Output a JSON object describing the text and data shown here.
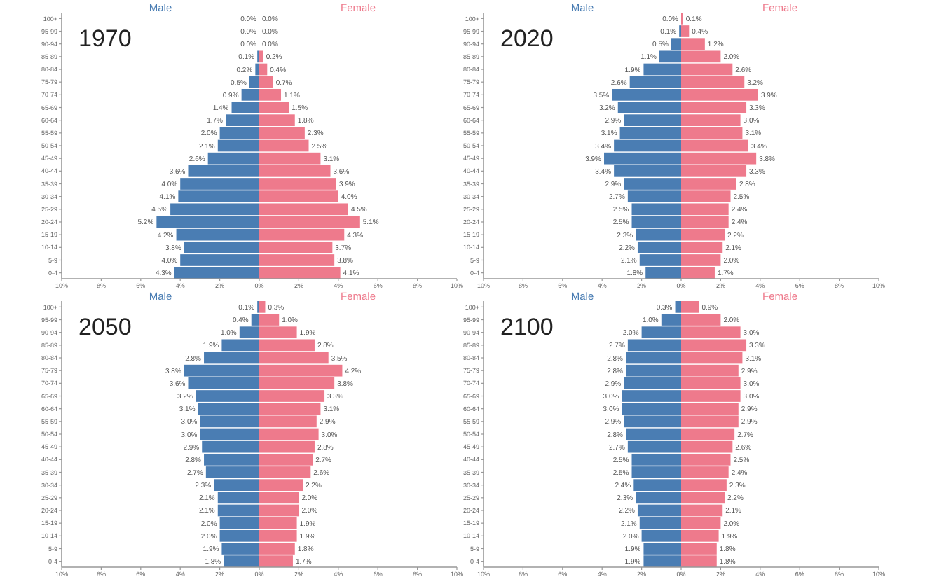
{
  "chart_data": [
    {
      "type": "bar",
      "orientation": "horizontal",
      "stacked": true,
      "title": "1970",
      "categories": [
        "100+",
        "95-99",
        "90-94",
        "85-89",
        "80-84",
        "75-79",
        "70-74",
        "65-69",
        "60-64",
        "55-59",
        "50-54",
        "45-49",
        "40-44",
        "35-39",
        "30-34",
        "25-29",
        "20-24",
        "15-19",
        "10-14",
        "5-9",
        "0-4"
      ],
      "xlim": [
        -10,
        10
      ],
      "xticks": [
        {
          "value": -10,
          "label": "10%"
        },
        {
          "value": -8,
          "label": "8%"
        },
        {
          "value": -6,
          "label": "6%"
        },
        {
          "value": -4,
          "label": "4%"
        },
        {
          "value": -2,
          "label": "2%"
        },
        {
          "value": 0,
          "label": "0%"
        },
        {
          "value": 2,
          "label": "2%"
        },
        {
          "value": 4,
          "label": "4%"
        },
        {
          "value": 6,
          "label": "6%"
        },
        {
          "value": 8,
          "label": "8%"
        },
        {
          "value": 10,
          "label": "10%"
        }
      ],
      "series": [
        {
          "name": "Male",
          "color": "#4a7db3",
          "values": [
            0.0,
            0.0,
            0.0,
            -0.1,
            -0.2,
            -0.5,
            -0.9,
            -1.4,
            -1.7,
            -2.0,
            -2.1,
            -2.6,
            -3.6,
            -4.0,
            -4.1,
            -4.5,
            -5.2,
            -4.2,
            -3.8,
            -4.0,
            -4.3
          ]
        },
        {
          "name": "Female",
          "color": "#ee7a8c",
          "values": [
            0.0,
            0.0,
            0.0,
            0.2,
            0.4,
            0.7,
            1.1,
            1.5,
            1.8,
            2.3,
            2.5,
            3.1,
            3.6,
            3.9,
            4.0,
            4.5,
            5.1,
            4.3,
            3.7,
            3.8,
            4.1
          ],
          "value_labels": [
            "0.0%",
            "0.0%",
            "0.0%",
            "0.2%",
            "0.4%",
            "0.7%",
            "1.1%",
            "1.5%",
            "1.8%",
            "2.3%",
            "2.5%",
            "3.1%",
            "3.6%",
            "3.9%",
            "4.0%",
            "4.5%",
            "5.1%",
            "4.3%",
            "3.7%",
            "3.8%",
            "4.1%"
          ]
        }
      ],
      "annotations": [
        {
          "text": "0.0%",
          "x": 0.0,
          "y": "100+"
        },
        {
          "text": "0.0%",
          "x": 0.0,
          "y": "95-99"
        },
        {
          "text": "0.0%",
          "x": 0.0,
          "y": "90-94"
        },
        {
          "text": "0.1%",
          "x": -0.1,
          "y": "85-89"
        },
        {
          "text": "0.2%",
          "x": -0.2,
          "y": "80-84"
        },
        {
          "text": "0.5%",
          "x": -0.5,
          "y": "75-79"
        },
        {
          "text": "0.9%",
          "x": -0.9,
          "y": "70-74"
        },
        {
          "text": "1.4%",
          "x": -1.4,
          "y": "65-69"
        },
        {
          "text": "1.7%",
          "x": -1.7,
          "y": "60-64"
        },
        {
          "text": "2.0%",
          "x": -2.0,
          "y": "55-59"
        },
        {
          "text": "2.1%",
          "x": -2.1,
          "y": "50-54"
        },
        {
          "text": "2.6%",
          "x": -2.6,
          "y": "45-49"
        },
        {
          "text": "3.6%",
          "x": -3.6,
          "y": "40-44"
        },
        {
          "text": "4.0%",
          "x": -4.0,
          "y": "35-39"
        },
        {
          "text": "4.1%",
          "x": -4.1,
          "y": "30-34"
        },
        {
          "text": "4.5%",
          "x": -4.5,
          "y": "25-29"
        },
        {
          "text": "5.2%",
          "x": -5.2,
          "y": "20-24"
        },
        {
          "text": "4.2%",
          "x": -4.2,
          "y": "15-19"
        },
        {
          "text": "3.8%",
          "x": -3.8,
          "y": "10-14"
        },
        {
          "text": "4.0%",
          "x": -4.0,
          "y": "5-9"
        },
        {
          "text": "4.3%",
          "x": -4.3,
          "y": "0-4"
        }
      ]
    },
    {
      "type": "bar",
      "orientation": "horizontal",
      "stacked": true,
      "title": "2020",
      "categories": [
        "100+",
        "95-99",
        "90-94",
        "85-89",
        "80-84",
        "75-79",
        "70-74",
        "65-69",
        "60-64",
        "55-59",
        "50-54",
        "45-49",
        "40-44",
        "35-39",
        "30-34",
        "25-29",
        "20-24",
        "15-19",
        "10-14",
        "5-9",
        "0-4"
      ],
      "xlim": [
        -10,
        10
      ],
      "xticks": [
        {
          "value": -10,
          "label": "10%"
        },
        {
          "value": -8,
          "label": "8%"
        },
        {
          "value": -6,
          "label": "6%"
        },
        {
          "value": -4,
          "label": "4%"
        },
        {
          "value": -2,
          "label": "2%"
        },
        {
          "value": 0,
          "label": "0%"
        },
        {
          "value": 2,
          "label": "2%"
        },
        {
          "value": 4,
          "label": "4%"
        },
        {
          "value": 6,
          "label": "6%"
        },
        {
          "value": 8,
          "label": "8%"
        },
        {
          "value": 10,
          "label": "10%"
        }
      ],
      "series": [
        {
          "name": "Male",
          "color": "#4a7db3",
          "values": [
            0.0,
            -0.1,
            -0.5,
            -1.1,
            -1.9,
            -2.6,
            -3.5,
            -3.2,
            -2.9,
            -3.1,
            -3.4,
            -3.9,
            -3.4,
            -2.9,
            -2.7,
            -2.5,
            -2.5,
            -2.3,
            -2.2,
            -2.1,
            -1.8
          ]
        },
        {
          "name": "Female",
          "color": "#ee7a8c",
          "values": [
            0.1,
            0.4,
            1.2,
            2.0,
            2.6,
            3.2,
            3.9,
            3.3,
            3.0,
            3.1,
            3.4,
            3.8,
            3.3,
            2.8,
            2.5,
            2.4,
            2.4,
            2.2,
            2.1,
            2.0,
            1.7
          ],
          "value_labels": [
            "0.1%",
            "0.4%",
            "1.2%",
            "2.0%",
            "2.6%",
            "3.2%",
            "3.9%",
            "3.3%",
            "3.0%",
            "3.1%",
            "3.4%",
            "3.8%",
            "3.3%",
            "2.8%",
            "2.5%",
            "2.4%",
            "2.4%",
            "2.2%",
            "2.1%",
            "2.0%",
            "1.7%"
          ]
        }
      ],
      "annotations": [
        {
          "text": "0.0%",
          "x": 0.0,
          "y": "100+"
        },
        {
          "text": "0.1%",
          "x": -0.1,
          "y": "95-99"
        },
        {
          "text": "0.5%",
          "x": -0.5,
          "y": "90-94"
        },
        {
          "text": "1.1%",
          "x": -1.1,
          "y": "85-89"
        },
        {
          "text": "1.9%",
          "x": -1.9,
          "y": "80-84"
        },
        {
          "text": "2.6%",
          "x": -2.6,
          "y": "75-79"
        },
        {
          "text": "3.5%",
          "x": -3.5,
          "y": "70-74"
        },
        {
          "text": "3.2%",
          "x": -3.2,
          "y": "65-69"
        },
        {
          "text": "2.9%",
          "x": -2.9,
          "y": "60-64"
        },
        {
          "text": "3.1%",
          "x": -3.1,
          "y": "55-59"
        },
        {
          "text": "3.4%",
          "x": -3.4,
          "y": "50-54"
        },
        {
          "text": "3.9%",
          "x": -3.9,
          "y": "45-49"
        },
        {
          "text": "3.4%",
          "x": -3.4,
          "y": "40-44"
        },
        {
          "text": "2.9%",
          "x": -2.9,
          "y": "35-39"
        },
        {
          "text": "2.7%",
          "x": -2.7,
          "y": "30-34"
        },
        {
          "text": "2.5%",
          "x": -2.5,
          "y": "25-29"
        },
        {
          "text": "2.5%",
          "x": -2.5,
          "y": "20-24"
        },
        {
          "text": "2.3%",
          "x": -2.3,
          "y": "15-19"
        },
        {
          "text": "2.2%",
          "x": -2.2,
          "y": "10-14"
        },
        {
          "text": "2.1%",
          "x": -2.1,
          "y": "5-9"
        },
        {
          "text": "1.8%",
          "x": -1.8,
          "y": "0-4"
        }
      ]
    },
    {
      "type": "bar",
      "orientation": "horizontal",
      "stacked": true,
      "title": "2050",
      "categories": [
        "100+",
        "95-99",
        "90-94",
        "85-89",
        "80-84",
        "75-79",
        "70-74",
        "65-69",
        "60-64",
        "55-59",
        "50-54",
        "45-49",
        "40-44",
        "35-39",
        "30-34",
        "25-29",
        "20-24",
        "15-19",
        "10-14",
        "5-9",
        "0-4"
      ],
      "xlim": [
        -10,
        10
      ],
      "xticks": [
        {
          "value": -10,
          "label": "10%"
        },
        {
          "value": -8,
          "label": "8%"
        },
        {
          "value": -6,
          "label": "6%"
        },
        {
          "value": -4,
          "label": "4%"
        },
        {
          "value": -2,
          "label": "2%"
        },
        {
          "value": 0,
          "label": "0%"
        },
        {
          "value": 2,
          "label": "2%"
        },
        {
          "value": 4,
          "label": "4%"
        },
        {
          "value": 6,
          "label": "6%"
        },
        {
          "value": 8,
          "label": "8%"
        },
        {
          "value": 10,
          "label": "10%"
        }
      ],
      "series": [
        {
          "name": "Male",
          "color": "#4a7db3",
          "values": [
            -0.1,
            -0.4,
            -1.0,
            -1.9,
            -2.8,
            -3.8,
            -3.6,
            -3.2,
            -3.1,
            -3.0,
            -3.0,
            -2.9,
            -2.8,
            -2.7,
            -2.3,
            -2.1,
            -2.1,
            -2.0,
            -2.0,
            -1.9,
            -1.8
          ]
        },
        {
          "name": "Female",
          "color": "#ee7a8c",
          "values": [
            0.3,
            1.0,
            1.9,
            2.8,
            3.5,
            4.2,
            3.8,
            3.3,
            3.1,
            2.9,
            3.0,
            2.8,
            2.7,
            2.6,
            2.2,
            2.0,
            2.0,
            1.9,
            1.9,
            1.8,
            1.7
          ],
          "value_labels": [
            "0.3%",
            "1.0%",
            "1.9%",
            "2.8%",
            "3.5%",
            "4.2%",
            "3.8%",
            "3.3%",
            "3.1%",
            "2.9%",
            "3.0%",
            "2.8%",
            "2.7%",
            "2.6%",
            "2.2%",
            "2.0%",
            "2.0%",
            "1.9%",
            "1.9%",
            "1.8%",
            "1.7%"
          ]
        }
      ],
      "annotations": [
        {
          "text": "0.1%",
          "x": -0.1,
          "y": "100+"
        },
        {
          "text": "0.4%",
          "x": -0.4,
          "y": "95-99"
        },
        {
          "text": "1.0%",
          "x": -1.0,
          "y": "90-94"
        },
        {
          "text": "1.9%",
          "x": -1.9,
          "y": "85-89"
        },
        {
          "text": "2.8%",
          "x": -2.8,
          "y": "80-84"
        },
        {
          "text": "3.8%",
          "x": -3.8,
          "y": "75-79"
        },
        {
          "text": "3.6%",
          "x": -3.6,
          "y": "70-74"
        },
        {
          "text": "3.2%",
          "x": -3.2,
          "y": "65-69"
        },
        {
          "text": "3.1%",
          "x": -3.1,
          "y": "60-64"
        },
        {
          "text": "3.0%",
          "x": -3.0,
          "y": "55-59"
        },
        {
          "text": "3.0%",
          "x": -3.0,
          "y": "50-54"
        },
        {
          "text": "2.9%",
          "x": -2.9,
          "y": "45-49"
        },
        {
          "text": "2.8%",
          "x": -2.8,
          "y": "40-44"
        },
        {
          "text": "2.7%",
          "x": -2.7,
          "y": "35-39"
        },
        {
          "text": "2.3%",
          "x": -2.3,
          "y": "30-34"
        },
        {
          "text": "2.1%",
          "x": -2.1,
          "y": "25-29"
        },
        {
          "text": "2.1%",
          "x": -2.1,
          "y": "20-24"
        },
        {
          "text": "2.0%",
          "x": -2.0,
          "y": "15-19"
        },
        {
          "text": "2.0%",
          "x": -2.0,
          "y": "10-14"
        },
        {
          "text": "1.9%",
          "x": -1.9,
          "y": "5-9"
        },
        {
          "text": "1.8%",
          "x": -1.8,
          "y": "0-4"
        }
      ]
    },
    {
      "type": "bar",
      "orientation": "horizontal",
      "stacked": true,
      "title": "2100",
      "categories": [
        "100+",
        "95-99",
        "90-94",
        "85-89",
        "80-84",
        "75-79",
        "70-74",
        "65-69",
        "60-64",
        "55-59",
        "50-54",
        "45-49",
        "40-44",
        "35-39",
        "30-34",
        "25-29",
        "20-24",
        "15-19",
        "10-14",
        "5-9",
        "0-4"
      ],
      "xlim": [
        -10,
        10
      ],
      "xticks": [
        {
          "value": -10,
          "label": "10%"
        },
        {
          "value": -8,
          "label": "8%"
        },
        {
          "value": -6,
          "label": "6%"
        },
        {
          "value": -4,
          "label": "4%"
        },
        {
          "value": -2,
          "label": "2%"
        },
        {
          "value": 0,
          "label": "0%"
        },
        {
          "value": 2,
          "label": "2%"
        },
        {
          "value": 4,
          "label": "4%"
        },
        {
          "value": 6,
          "label": "6%"
        },
        {
          "value": 8,
          "label": "8%"
        },
        {
          "value": 10,
          "label": "10%"
        }
      ],
      "series": [
        {
          "name": "Male",
          "color": "#4a7db3",
          "values": [
            -0.3,
            -1.0,
            -2.0,
            -2.7,
            -2.8,
            -2.8,
            -2.9,
            -3.0,
            -3.0,
            -2.9,
            -2.8,
            -2.7,
            -2.5,
            -2.5,
            -2.4,
            -2.3,
            -2.2,
            -2.1,
            -2.0,
            -1.9,
            -1.9
          ]
        },
        {
          "name": "Female",
          "color": "#ee7a8c",
          "values": [
            0.9,
            2.0,
            3.0,
            3.3,
            3.1,
            2.9,
            3.0,
            3.0,
            2.9,
            2.9,
            2.7,
            2.6,
            2.5,
            2.4,
            2.3,
            2.2,
            2.1,
            2.0,
            1.9,
            1.8,
            1.8
          ],
          "value_labels": [
            "0.9%",
            "2.0%",
            "3.0%",
            "3.3%",
            "3.1%",
            "2.9%",
            "3.0%",
            "3.0%",
            "2.9%",
            "2.9%",
            "2.7%",
            "2.6%",
            "2.5%",
            "2.4%",
            "2.3%",
            "2.2%",
            "2.1%",
            "2.0%",
            "1.9%",
            "1.8%",
            "1.8%"
          ]
        }
      ],
      "annotations": [
        {
          "text": "0.3%",
          "x": -0.3,
          "y": "100+"
        },
        {
          "text": "1.0%",
          "x": -1.0,
          "y": "95-99"
        },
        {
          "text": "2.0%",
          "x": -2.0,
          "y": "90-94"
        },
        {
          "text": "2.7%",
          "x": -2.7,
          "y": "85-89"
        },
        {
          "text": "2.8%",
          "x": -2.8,
          "y": "80-84"
        },
        {
          "text": "2.8%",
          "x": -2.8,
          "y": "75-79"
        },
        {
          "text": "2.9%",
          "x": -2.9,
          "y": "70-74"
        },
        {
          "text": "3.0%",
          "x": -3.0,
          "y": "65-69"
        },
        {
          "text": "3.0%",
          "x": -3.0,
          "y": "60-64"
        },
        {
          "text": "2.9%",
          "x": -2.9,
          "y": "55-59"
        },
        {
          "text": "2.8%",
          "x": -2.8,
          "y": "50-54"
        },
        {
          "text": "2.7%",
          "x": -2.7,
          "y": "45-49"
        },
        {
          "text": "2.5%",
          "x": -2.5,
          "y": "40-44"
        },
        {
          "text": "2.5%",
          "x": -2.5,
          "y": "35-39"
        },
        {
          "text": "2.4%",
          "x": -2.4,
          "y": "30-34"
        },
        {
          "text": "2.3%",
          "x": -2.3,
          "y": "25-29"
        },
        {
          "text": "2.2%",
          "x": -2.2,
          "y": "20-24"
        },
        {
          "text": "2.1%",
          "x": -2.1,
          "y": "15-19"
        },
        {
          "text": "2.0%",
          "x": -2.0,
          "y": "10-14"
        },
        {
          "text": "1.9%",
          "x": -1.9,
          "y": "5-9"
        },
        {
          "text": "1.9%",
          "x": -1.9,
          "y": "0-4"
        }
      ]
    }
  ]
}
